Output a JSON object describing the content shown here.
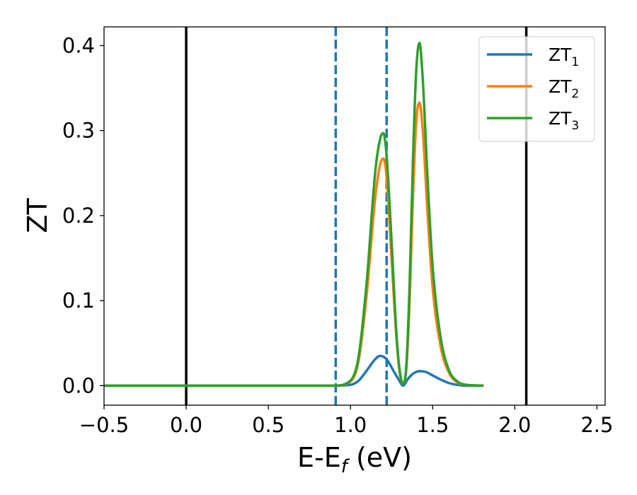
{
  "chart_data": {
    "type": "line",
    "xlabel": {
      "main": "E-E",
      "sub": "f",
      "unit": " (eV)"
    },
    "ylabel": "ZT",
    "xlim": [
      -0.5,
      2.55
    ],
    "ylim": [
      -0.023,
      0.422
    ],
    "xticks": [
      {
        "value": -0.5,
        "label": "−0.5"
      },
      {
        "value": 0.0,
        "label": "0.0"
      },
      {
        "value": 0.5,
        "label": "0.5"
      },
      {
        "value": 1.0,
        "label": "1.0"
      },
      {
        "value": 1.5,
        "label": "1.5"
      },
      {
        "value": 2.0,
        "label": "2.0"
      },
      {
        "value": 2.5,
        "label": "2.5"
      }
    ],
    "yticks": [
      {
        "value": 0.0,
        "label": "0.0"
      },
      {
        "value": 0.1,
        "label": "0.1"
      },
      {
        "value": 0.2,
        "label": "0.2"
      },
      {
        "value": 0.3,
        "label": "0.3"
      },
      {
        "value": 0.4,
        "label": "0.4"
      }
    ],
    "grid": false,
    "legend_position": "upper right",
    "reference_lines": [
      {
        "x": 0.0,
        "style": "solid",
        "color": "#000000"
      },
      {
        "x": 2.07,
        "style": "solid",
        "color": "#000000"
      },
      {
        "x": 0.91,
        "style": "dashed",
        "color": "#1f77b4"
      },
      {
        "x": 1.22,
        "style": "dashed",
        "color": "#1f77b4"
      }
    ],
    "series": [
      {
        "name": "ZT",
        "name_sub": "1",
        "color": "#1f77b4",
        "x": [
          -0.5,
          0.9,
          1.0,
          1.05,
          1.1,
          1.15,
          1.18,
          1.22,
          1.26,
          1.3,
          1.32,
          1.35,
          1.38,
          1.42,
          1.46,
          1.5,
          1.55,
          1.6,
          1.65,
          1.7,
          1.81
        ],
        "y": [
          0.0,
          0.0,
          0.001,
          0.006,
          0.018,
          0.031,
          0.035,
          0.031,
          0.018,
          0.005,
          0.0,
          0.008,
          0.014,
          0.017,
          0.016,
          0.012,
          0.007,
          0.003,
          0.001,
          0.0,
          0.0
        ]
      },
      {
        "name": "ZT",
        "name_sub": "2",
        "color": "#ff7f0e",
        "x": [
          -0.5,
          0.9,
          1.0,
          1.05,
          1.1,
          1.15,
          1.18,
          1.2,
          1.22,
          1.25,
          1.28,
          1.3,
          1.32,
          1.34,
          1.36,
          1.38,
          1.4,
          1.42,
          1.44,
          1.47,
          1.5,
          1.55,
          1.6,
          1.65,
          1.7,
          1.81
        ],
        "y": [
          0.0,
          0.0,
          0.005,
          0.03,
          0.11,
          0.22,
          0.26,
          0.267,
          0.245,
          0.15,
          0.055,
          0.015,
          0.002,
          0.02,
          0.1,
          0.22,
          0.31,
          0.333,
          0.3,
          0.2,
          0.115,
          0.045,
          0.015,
          0.004,
          0.001,
          0.0
        ]
      },
      {
        "name": "ZT",
        "name_sub": "3",
        "color": "#2ca02c",
        "x": [
          -0.5,
          0.9,
          1.0,
          1.05,
          1.1,
          1.15,
          1.18,
          1.2,
          1.22,
          1.25,
          1.28,
          1.3,
          1.32,
          1.34,
          1.36,
          1.38,
          1.4,
          1.42,
          1.44,
          1.47,
          1.5,
          1.55,
          1.6,
          1.65,
          1.7,
          1.81
        ],
        "y": [
          0.0,
          0.0,
          0.006,
          0.035,
          0.125,
          0.25,
          0.29,
          0.297,
          0.27,
          0.17,
          0.06,
          0.017,
          0.002,
          0.024,
          0.12,
          0.265,
          0.37,
          0.403,
          0.36,
          0.24,
          0.14,
          0.055,
          0.018,
          0.005,
          0.001,
          0.0
        ]
      }
    ]
  }
}
